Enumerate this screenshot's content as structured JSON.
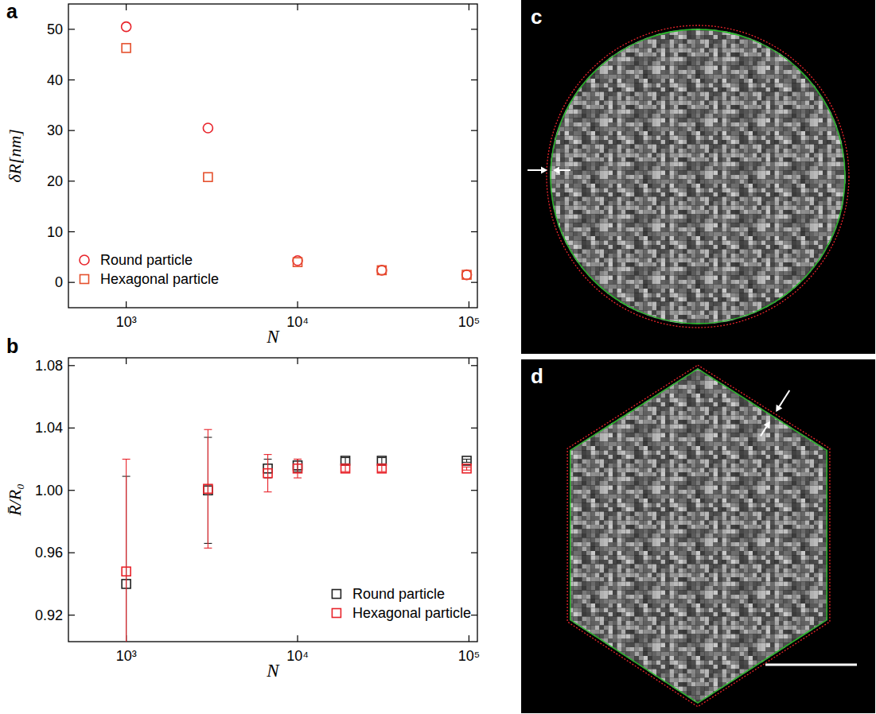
{
  "chart_data": [
    {
      "type": "scatter",
      "panel": "a",
      "x_label": "N",
      "y_label": "δR[nm]",
      "log": "x",
      "xlim": [
        460,
        112000
      ],
      "xticks": [
        {
          "value": 1000,
          "label": "10³"
        },
        {
          "value": 10000,
          "label": "10⁴"
        },
        {
          "value": 100000,
          "label": "10⁵"
        }
      ],
      "ylim": [
        -5,
        55
      ],
      "yticks": [
        0,
        10,
        20,
        30,
        40,
        50
      ],
      "legend": "lower left",
      "x": [
        1000,
        3000,
        10000,
        31000,
        97000
      ],
      "series": [
        {
          "name": "Round particle",
          "color": "#e8232a",
          "marker": "circle",
          "values": [
            50.5,
            30.5,
            4.3,
            2.4,
            1.5
          ]
        },
        {
          "name": "Hexagonal particle",
          "color": "#e5502d",
          "marker": "square",
          "values": [
            46.3,
            20.8,
            4.0,
            2.4,
            1.5
          ]
        }
      ]
    },
    {
      "type": "scatter",
      "panel": "b",
      "x_label": "N",
      "y_label": "R̄/R₀",
      "log": "x",
      "xlim": [
        460,
        112000
      ],
      "xticks": [
        {
          "value": 1000,
          "label": "10³"
        },
        {
          "value": 10000,
          "label": "10⁴"
        },
        {
          "value": 100000,
          "label": "10⁵"
        }
      ],
      "ylim": [
        0.903,
        1.085
      ],
      "yticks": [
        0.92,
        0.96,
        {
          "value": 1,
          "label": "1.00"
        },
        1.04,
        1.08
      ],
      "legend": "lower right",
      "x": [
        1000,
        3000,
        6700,
        10000,
        19000,
        31000,
        97000
      ],
      "series": [
        {
          "name": "Round particle",
          "color": "#222222",
          "marker": "square",
          "values": [
            0.94,
            1.0,
            1.014,
            1.016,
            1.019,
            1.019,
            1.019
          ],
          "errors": [
            0.069,
            0.034,
            0.006,
            0.004,
            0.002,
            0.002,
            0.001
          ]
        },
        {
          "name": "Hexagonal particle",
          "color": "#e8232a",
          "marker": "square",
          "values": [
            0.948,
            1.001,
            1.011,
            1.014,
            1.014,
            1.014,
            1.014
          ],
          "errors": [
            0.072,
            0.038,
            0.012,
            0.006,
            0.002,
            0.002,
            0.001
          ]
        }
      ]
    }
  ],
  "images": [
    {
      "panel": "c",
      "shape": "circle"
    },
    {
      "panel": "d",
      "shape": "hexagon"
    }
  ]
}
